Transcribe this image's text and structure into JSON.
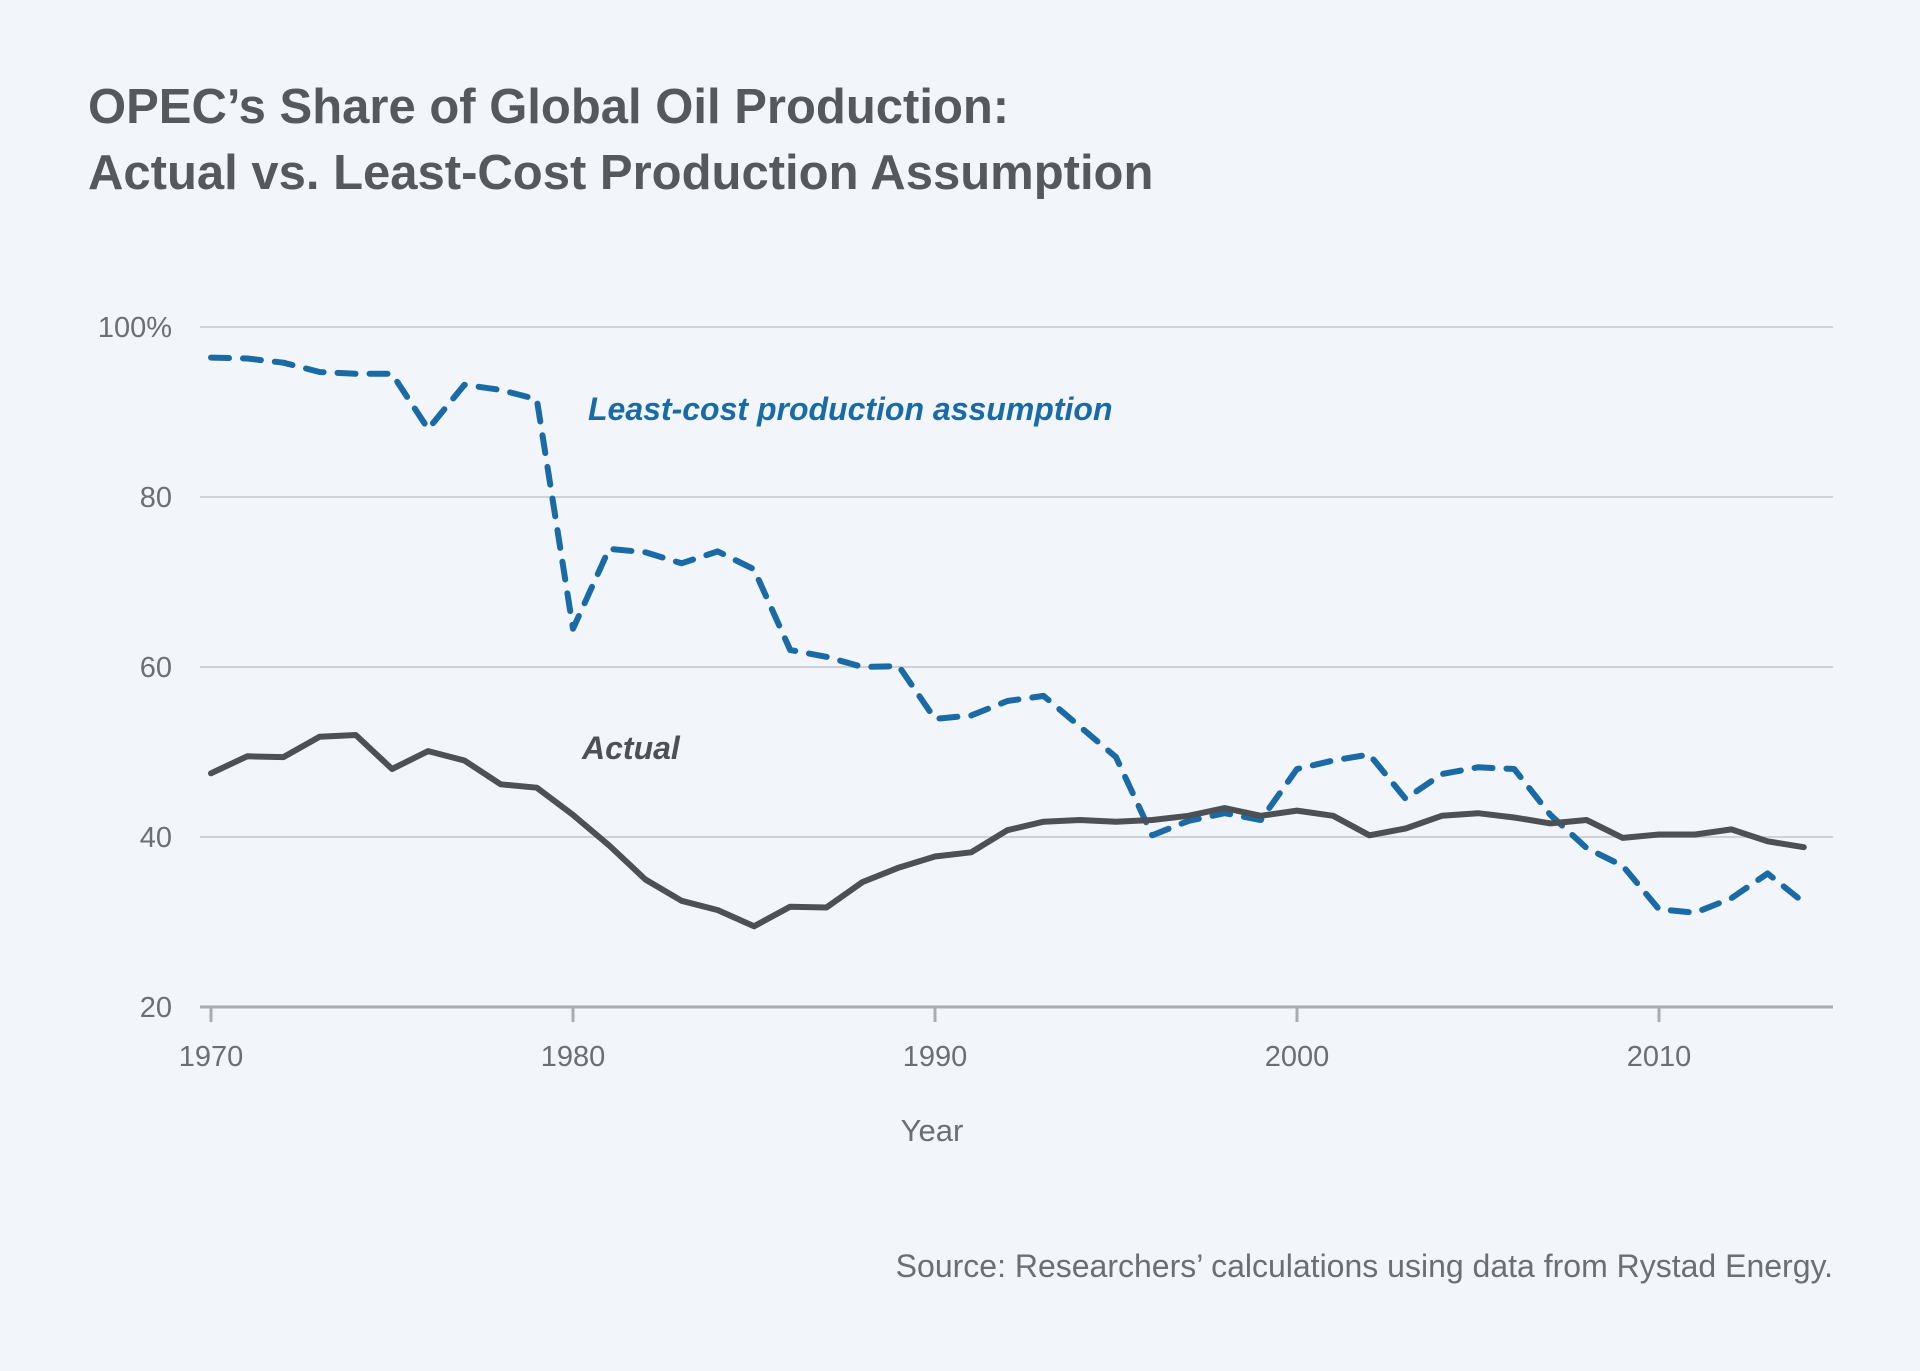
{
  "chart_data": {
    "type": "line",
    "title": [
      "OPEC’s Share of Global Oil Production:",
      "Actual vs. Least-Cost Production Assumption"
    ],
    "xlabel": "Year",
    "ylabel": "",
    "xlim": [
      1970,
      2015
    ],
    "ylim": [
      20,
      100
    ],
    "xticks": [
      1970,
      1980,
      1990,
      2000,
      2010
    ],
    "xtick_labels": [
      "1970",
      "1980",
      "1990",
      "2000",
      "2010"
    ],
    "yticks": [
      20,
      40,
      60,
      80,
      100
    ],
    "ytick_labels": [
      "20",
      "40",
      "60",
      "80",
      "100%"
    ],
    "grid": "horizontal",
    "x": [
      1970,
      1971,
      1972,
      1973,
      1974,
      1975,
      1976,
      1977,
      1978,
      1979,
      1980,
      1981,
      1982,
      1983,
      1984,
      1985,
      1986,
      1987,
      1988,
      1989,
      1990,
      1991,
      1992,
      1993,
      1994,
      1995,
      1996,
      1997,
      1998,
      1999,
      2000,
      2001,
      2002,
      2003,
      2004,
      2005,
      2006,
      2007,
      2008,
      2009,
      2010,
      2011,
      2012,
      2013,
      2014
    ],
    "series": [
      {
        "name": "Least-cost production assumption",
        "color": "#1a6aa6",
        "dash": true,
        "values": [
          96.4,
          96.3,
          95.8,
          94.7,
          94.5,
          94.5,
          88,
          93.2,
          92.6,
          91.5,
          64.5,
          73.9,
          73.5,
          72.2,
          73.6,
          71.5,
          62,
          61.2,
          60,
          60.1,
          53.9,
          54.3,
          56,
          56.6,
          53,
          49.4,
          40.2,
          41.9,
          42.8,
          42,
          48,
          49,
          49.7,
          44.5,
          47.4,
          48.2,
          48,
          42.6,
          38.7,
          36.6,
          31.5,
          31.1,
          32.8,
          35.7,
          32.3
        ]
      },
      {
        "name": "Actual",
        "color": "#4d5054",
        "dash": false,
        "values": [
          47.5,
          49.5,
          49.4,
          51.8,
          52,
          48,
          50.1,
          49,
          46.2,
          45.8,
          42.6,
          39,
          35,
          32.5,
          31.4,
          29.5,
          31.8,
          31.7,
          34.7,
          36.4,
          37.7,
          38.2,
          40.8,
          41.8,
          42,
          41.8,
          42,
          42.5,
          43.4,
          42.5,
          43.1,
          42.5,
          40.2,
          41,
          42.5,
          42.8,
          42.3,
          41.6,
          42,
          39.9,
          40.3,
          40.3,
          40.9,
          39.5,
          38.8
        ]
      }
    ]
  },
  "source": "Source: Researchers’ calculations using data from Rystad Energy."
}
